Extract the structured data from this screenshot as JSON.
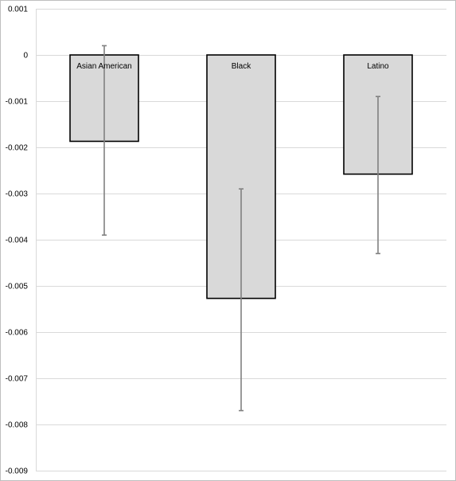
{
  "chart_data": {
    "type": "bar",
    "title": "",
    "xlabel": "",
    "ylabel": "",
    "categories": [
      "Asian American",
      "Black",
      "Latino"
    ],
    "values": [
      -0.00187,
      -0.00527,
      -0.00258
    ],
    "error_bars": [
      {
        "upper": 0.0002,
        "lower": -0.0039
      },
      {
        "upper": -0.0029,
        "lower": -0.0077
      },
      {
        "upper": -0.0009,
        "lower": -0.0043
      }
    ],
    "ylim": [
      -0.009,
      0.001
    ],
    "yticks": [
      0.001,
      0,
      -0.001,
      -0.002,
      -0.003,
      -0.004,
      -0.005,
      -0.006,
      -0.007,
      -0.008,
      -0.009
    ],
    "ytick_labels": [
      "0.001",
      "0",
      "-0.001",
      "-0.002",
      "-0.003",
      "-0.004",
      "-0.005",
      "-0.006",
      "-0.007",
      "-0.008",
      "-0.009"
    ],
    "grid": true,
    "legend": "none",
    "colors": {
      "bar_fill": "#d9d9d9",
      "bar_stroke": "#000000",
      "error_bar": "#808080",
      "grid": "#d9d9d9",
      "border": "#bfbfbf"
    }
  }
}
